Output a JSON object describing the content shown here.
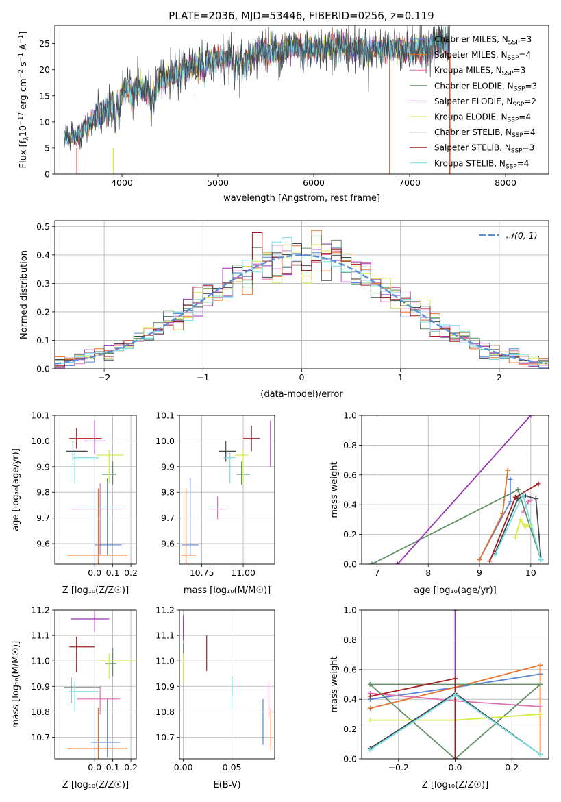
{
  "page": {
    "title": "PLATE=2036, MJD=53446, FIBERID=0256, z=0.119"
  },
  "colors": {
    "Chabrier MILES": "#5b84d6",
    "Salpeter MILES": "#e8722c",
    "Kroupa MILES": "#e06fb0",
    "Chabrier ELODIE": "#5f8f62",
    "Salpeter ELODIE": "#9b30b5",
    "Kroupa ELODIE": "#d7ea45",
    "Chabrier STELIB": "#404a50",
    "Salpeter STELIB": "#a81c1c",
    "Kroupa STELIB": "#76e0e6",
    "gaussian": "#5b8fd6",
    "grid": "#b0b0b0"
  },
  "chart_data": [
    {
      "id": "spectrum",
      "type": "line",
      "title": "PLATE=2036, MJD=53446, FIBERID=0256, z=0.119",
      "xlabel": "wavelength [Angstrom, rest frame]",
      "ylabel_parts": [
        "Flux [f",
        "λ",
        "10",
        "−17",
        " erg cm",
        "−2",
        " s",
        "−1",
        " A",
        "−1",
        "]"
      ],
      "xlim": [
        3300,
        8450
      ],
      "ylim": [
        0,
        28.5
      ],
      "xticks": [
        4000,
        5000,
        6000,
        7000,
        8000
      ],
      "yticks": [
        0,
        5,
        10,
        15,
        20,
        25
      ],
      "grid": false,
      "legend_position": "top-right",
      "spectrum_knots": {
        "wavelength": [
          3400,
          3500,
          3600,
          3700,
          3800,
          3900,
          4000,
          4100,
          4200,
          4300,
          4400,
          4500,
          4600,
          4700,
          4800,
          4900,
          5000,
          5100,
          5200,
          5300,
          5400,
          5500,
          5600,
          5700,
          5800,
          5900,
          6000,
          6100,
          6200,
          6300,
          6400,
          6500,
          6600,
          6700,
          6800,
          6900,
          7000,
          7100,
          7200,
          7300,
          7400
        ],
        "flux": [
          7,
          6.8,
          8.5,
          10.5,
          11.5,
          13,
          15.5,
          16,
          16.5,
          15.5,
          18,
          18.5,
          19.5,
          20.5,
          21,
          21.5,
          22,
          22.5,
          22,
          21.5,
          23.5,
          23.5,
          23.5,
          24,
          24.5,
          24.5,
          24,
          24,
          24.5,
          24.5,
          24,
          24,
          24,
          24,
          24,
          24.5,
          23.5,
          24,
          24.5,
          25,
          25
        ]
      },
      "series": [
        {
          "name": "Chabrier MILES",
          "nssp": "3"
        },
        {
          "name": "Salpeter MILES",
          "nssp": "4"
        },
        {
          "name": "Kroupa MILES",
          "nssp": "3"
        },
        {
          "name": "Chabrier ELODIE",
          "nssp": "3"
        },
        {
          "name": "Salpeter ELODIE",
          "nssp": "2"
        },
        {
          "name": "Kroupa ELODIE",
          "nssp": "4"
        },
        {
          "name": "Chabrier STELIB",
          "nssp": "4"
        },
        {
          "name": "Salpeter STELIB",
          "nssp": "3"
        },
        {
          "name": "Kroupa STELIB",
          "nssp": "4"
        }
      ]
    },
    {
      "id": "residuals",
      "type": "histogram",
      "xlabel": "(data-model)/error",
      "ylabel": "Normed distribution",
      "xlim": [
        -2.5,
        2.5
      ],
      "ylim": [
        0,
        0.52
      ],
      "xticks": [
        -2,
        -1,
        0,
        1,
        2
      ],
      "yticks": [
        0.0,
        0.1,
        0.2,
        0.3,
        0.4,
        0.5
      ],
      "grid": true,
      "legend_position": "top-right",
      "legend": "𝒩(0, 1)",
      "bin_width": 0.1
    },
    {
      "id": "age_vs_Z",
      "type": "errorbar",
      "xlabel": "Z [log₁₀(Z/Z☉)]",
      "ylabel": "age  [log₁₀(age/yr)]",
      "xlim": [
        -0.22,
        0.23
      ],
      "ylim": [
        9.52,
        10.1
      ],
      "xticks": [
        0.0,
        0.1,
        0.2
      ],
      "xtick_labels": [
        "0.0",
        "0.1",
        "0.2"
      ],
      "yticks": [
        9.6,
        9.7,
        9.8,
        9.9,
        10.0,
        10.1
      ],
      "grid": true,
      "points": [
        {
          "series": "Chabrier MILES",
          "x": 0.07,
          "xerr": [
            0.07,
            0.08
          ],
          "y": 9.595,
          "yerr": [
            0.04,
            0.26
          ]
        },
        {
          "series": "Salpeter MILES",
          "x": 0.02,
          "xerr": [
            0.17,
            0.16
          ],
          "y": 9.555,
          "yerr": [
            0.04,
            0.26
          ]
        },
        {
          "series": "Kroupa MILES",
          "x": 0.03,
          "xerr": [
            0.16,
            0.12
          ],
          "y": 9.735,
          "yerr": [
            0.18,
            0.1
          ]
        },
        {
          "series": "Chabrier ELODIE",
          "x": 0.1,
          "xerr": [
            0.06,
            0.02
          ],
          "y": 9.87,
          "yerr": [
            0.04,
            0.05
          ]
        },
        {
          "series": "Salpeter ELODIE",
          "x": 0.0,
          "xerr": [
            0.06,
            0.06
          ],
          "y": 10.0,
          "yerr": [
            0.05,
            0.08
          ]
        },
        {
          "series": "Kroupa ELODIE",
          "x": 0.08,
          "xerr": [
            0.07,
            0.08
          ],
          "y": 9.945,
          "yerr": [
            0.11,
            0.02
          ]
        },
        {
          "series": "Chabrier STELIB",
          "x": -0.12,
          "xerr": [
            0.04,
            0.08
          ],
          "y": 9.96,
          "yerr": [
            0.04,
            0.04
          ]
        },
        {
          "series": "Salpeter STELIB",
          "x": -0.1,
          "xerr": [
            0.04,
            0.14
          ],
          "y": 10.01,
          "yerr": [
            0.04,
            0.04
          ]
        },
        {
          "series": "Kroupa STELIB",
          "x": -0.11,
          "xerr": [
            0.01,
            0.13
          ],
          "y": 9.935,
          "yerr": [
            0.1,
            0.02
          ]
        }
      ]
    },
    {
      "id": "age_vs_mass",
      "type": "errorbar",
      "xlabel": "mass [log₁₀(M/M☉)]",
      "ylabel": "",
      "xlim": [
        10.615,
        11.19
      ],
      "ylim": [
        9.52,
        10.1
      ],
      "xticks": [
        10.75,
        11.0
      ],
      "xtick_labels": [
        "10.75",
        "11.00"
      ],
      "yticks": [
        9.6,
        9.7,
        9.8,
        9.9,
        10.0,
        10.1
      ],
      "grid": true,
      "points": [
        {
          "series": "Chabrier MILES",
          "x": 10.68,
          "xerr": [
            0.05,
            0.05
          ],
          "y": 9.595,
          "yerr": [
            0.04,
            0.26
          ]
        },
        {
          "series": "Salpeter MILES",
          "x": 10.655,
          "xerr": [
            0.03,
            0.06
          ],
          "y": 9.555,
          "yerr": [
            0.04,
            0.26
          ]
        },
        {
          "series": "Kroupa MILES",
          "x": 10.845,
          "xerr": [
            0.05,
            0.05
          ],
          "y": 9.735,
          "yerr": [
            0.04,
            0.05
          ]
        },
        {
          "series": "Chabrier ELODIE",
          "x": 10.99,
          "xerr": [
            0.03,
            0.05
          ],
          "y": 9.87,
          "yerr": [
            0.04,
            0.05
          ]
        },
        {
          "series": "Salpeter ELODIE",
          "x": 11.165,
          "xerr": [
            0.0,
            0.0
          ],
          "y": 10.0,
          "yerr": [
            0.1,
            0.08
          ]
        },
        {
          "series": "Kroupa ELODIE",
          "x": 11.0,
          "xerr": [
            0.05,
            0.03
          ],
          "y": 9.945,
          "yerr": [
            0.11,
            0.02
          ]
        },
        {
          "series": "Chabrier STELIB",
          "x": 10.895,
          "xerr": [
            0.04,
            0.06
          ],
          "y": 9.96,
          "yerr": [
            0.04,
            0.04
          ]
        },
        {
          "series": "Salpeter STELIB",
          "x": 11.05,
          "xerr": [
            0.05,
            0.05
          ],
          "y": 10.01,
          "yerr": [
            0.05,
            0.05
          ]
        },
        {
          "series": "Kroupa STELIB",
          "x": 10.92,
          "xerr": [
            0.04,
            0.03
          ],
          "y": 9.935,
          "yerr": [
            0.1,
            0.02
          ]
        }
      ]
    },
    {
      "id": "weight_vs_age",
      "type": "line",
      "xlabel": "age  [log₁₀(age/yr)]",
      "ylabel": "mass weight",
      "xlim": [
        6.7,
        10.35
      ],
      "ylim": [
        0,
        1.0
      ],
      "xticks": [
        7,
        8,
        9,
        10
      ],
      "yticks": [
        0.0,
        0.2,
        0.4,
        0.6,
        0.8,
        1.0
      ],
      "grid": true,
      "series": [
        {
          "name": "Chabrier MILES",
          "x": [
            9.0,
            9.6,
            9.6
          ],
          "y": [
            0.03,
            0.42,
            0.57
          ]
        },
        {
          "name": "Salpeter MILES",
          "x": [
            9.0,
            9.45,
            9.55
          ],
          "y": [
            0.03,
            0.34,
            0.63
          ]
        },
        {
          "name": "Kroupa MILES",
          "x": [
            9.85,
            9.95,
            10.0
          ],
          "y": [
            0.35,
            0.42,
            0.43
          ]
        },
        {
          "name": "Chabrier ELODIE",
          "x": [
            6.9,
            9.75,
            10.2
          ],
          "y": [
            0.0,
            0.5,
            0.03
          ]
        },
        {
          "name": "Salpeter ELODIE",
          "x": [
            7.4,
            10.0
          ],
          "y": [
            0.0,
            1.0
          ]
        },
        {
          "name": "Kroupa ELODIE",
          "x": [
            9.7,
            9.8,
            9.9,
            10.0,
            9.85
          ],
          "y": [
            0.18,
            0.3,
            0.25,
            0.26,
            0.27
          ]
        },
        {
          "name": "Chabrier STELIB",
          "x": [
            9.3,
            9.75,
            9.9,
            10.1,
            10.2
          ],
          "y": [
            0.07,
            0.44,
            0.46,
            0.44,
            0.03
          ]
        },
        {
          "name": "Salpeter STELIB",
          "x": [
            9.2,
            9.7,
            10.15
          ],
          "y": [
            0.02,
            0.45,
            0.54
          ]
        },
        {
          "name": "Kroupa STELIB",
          "x": [
            9.3,
            9.85,
            9.9,
            10.2
          ],
          "y": [
            0.06,
            0.47,
            0.4,
            0.03
          ]
        }
      ]
    },
    {
      "id": "mass_vs_Z",
      "type": "errorbar",
      "xlabel": "Z [log₁₀(Z/Z☉)]",
      "ylabel": "mass [log₁₀(M/M☉)]",
      "xlim": [
        -0.22,
        0.23
      ],
      "ylim": [
        10.615,
        11.2
      ],
      "xticks": [
        0.0,
        0.1,
        0.2
      ],
      "xtick_labels": [
        "0.0",
        "0.1",
        "0.2"
      ],
      "yticks": [
        10.7,
        10.8,
        10.9,
        11.0,
        11.1,
        11.2
      ],
      "grid": true,
      "points": [
        {
          "series": "Chabrier MILES",
          "x": 0.07,
          "xerr": [
            0.09,
            0.07
          ],
          "y": 10.68,
          "yerr": [
            0.06,
            0.17
          ]
        },
        {
          "series": "Salpeter MILES",
          "x": 0.02,
          "xerr": [
            0.17,
            0.16
          ],
          "y": 10.655,
          "yerr": [
            0.06,
            0.16
          ]
        },
        {
          "series": "Kroupa MILES",
          "x": 0.03,
          "xerr": [
            0.13,
            0.11
          ],
          "y": 10.85,
          "yerr": [
            0.06,
            0.05
          ]
        },
        {
          "series": "Chabrier ELODIE",
          "x": 0.1,
          "xerr": [
            0.04,
            0.02
          ],
          "y": 10.99,
          "yerr": [
            0.05,
            0.06
          ]
        },
        {
          "series": "Salpeter ELODIE",
          "x": 0.0,
          "xerr": [
            0.13,
            0.08
          ],
          "y": 11.165,
          "yerr": [
            0.05,
            0.03
          ]
        },
        {
          "series": "Kroupa ELODIE",
          "x": 0.08,
          "xerr": [
            0.06,
            0.15
          ],
          "y": 11.0,
          "yerr": [
            0.07,
            0.03
          ]
        },
        {
          "series": "Chabrier STELIB",
          "x": -0.13,
          "xerr": [
            0.04,
            0.16
          ],
          "y": 10.895,
          "yerr": [
            0.06,
            0.04
          ]
        },
        {
          "series": "Salpeter STELIB",
          "x": -0.1,
          "xerr": [
            0.04,
            0.1
          ],
          "y": 11.055,
          "yerr": [
            0.1,
            0.04
          ]
        },
        {
          "series": "Kroupa STELIB",
          "x": -0.11,
          "xerr": [
            0.03,
            0.13
          ],
          "y": 10.88,
          "yerr": [
            0.08,
            0.04
          ]
        }
      ]
    },
    {
      "id": "mass_vs_ebv",
      "type": "errorbar",
      "xlabel": "E(B-V)",
      "ylabel": "",
      "xlim": [
        -0.004,
        0.094
      ],
      "ylim": [
        10.615,
        11.2
      ],
      "xticks": [
        0.0,
        0.05
      ],
      "xtick_labels": [
        "0.00",
        "0.05"
      ],
      "yticks": [
        10.7,
        10.8,
        10.9,
        11.0,
        11.1,
        11.2
      ],
      "grid": true,
      "points": [
        {
          "series": "Chabrier MILES",
          "x": 0.082,
          "xerr": [
            0,
            0
          ],
          "y": 10.76,
          "yerr": [
            0.09,
            0.09
          ]
        },
        {
          "series": "Salpeter MILES",
          "x": 0.09,
          "xerr": [
            0,
            0
          ],
          "y": 10.73,
          "yerr": [
            0.08,
            0.08
          ]
        },
        {
          "series": "Kroupa MILES",
          "x": 0.088,
          "xerr": [
            0,
            0
          ],
          "y": 10.85,
          "yerr": [
            0.07,
            0.07
          ]
        },
        {
          "series": "Chabrier ELODIE",
          "x": 0.0,
          "xerr": [
            0,
            0
          ],
          "y": 11.03,
          "yerr": [
            0.04,
            0.04
          ]
        },
        {
          "series": "Salpeter ELODIE",
          "x": 0.0,
          "xerr": [
            0,
            0
          ],
          "y": 11.13,
          "yerr": [
            0.05,
            0.05
          ]
        },
        {
          "series": "Kroupa ELODIE",
          "x": 0.0,
          "xerr": [
            0,
            0
          ],
          "y": 10.97,
          "yerr": [
            0.06,
            0.06
          ]
        },
        {
          "series": "Chabrier STELIB",
          "x": 0.05,
          "xerr": [
            0,
            0
          ],
          "y": 10.9,
          "yerr": [
            0.04,
            0.04
          ]
        },
        {
          "series": "Salpeter STELIB",
          "x": 0.024,
          "xerr": [
            0,
            0
          ],
          "y": 11.03,
          "yerr": [
            0.07,
            0.07
          ]
        },
        {
          "series": "Kroupa STELIB",
          "x": 0.05,
          "xerr": [
            0,
            0
          ],
          "y": 10.87,
          "yerr": [
            0.06,
            0.06
          ]
        }
      ]
    },
    {
      "id": "weight_vs_Z",
      "type": "line",
      "xlabel": "Z [log₁₀(Z/Z☉)]",
      "ylabel": "mass weight",
      "xlim": [
        -0.33,
        0.33
      ],
      "ylim": [
        0,
        1.0
      ],
      "xticks": [
        -0.2,
        0.0,
        0.2
      ],
      "xtick_labels": [
        "−0.2",
        "0.0",
        "0.2"
      ],
      "yticks": [
        0.0,
        0.2,
        0.4,
        0.6,
        0.8,
        1.0
      ],
      "grid": true,
      "series": [
        {
          "name": "Chabrier MILES",
          "x": [
            -0.3,
            0.0,
            0.3
          ],
          "y": [
            0.4,
            0.48,
            0.57
          ]
        },
        {
          "name": "Salpeter MILES",
          "x": [
            -0.3,
            0.0,
            0.3,
            0.3
          ],
          "y": [
            0.34,
            0.48,
            0.63,
            0.03
          ]
        },
        {
          "name": "Kroupa MILES",
          "x": [
            -0.3,
            0.0,
            0.3
          ],
          "y": [
            0.44,
            0.39,
            0.35
          ]
        },
        {
          "name": "Chabrier ELODIE",
          "x": [
            -0.3,
            0.0,
            0.3,
            -0.3,
            0.0,
            0.3
          ],
          "y": [
            0.5,
            0.0,
            0.5,
            0.5,
            0.0,
            0.5
          ]
        },
        {
          "name": "Salpeter ELODIE",
          "x": [
            0.0,
            0.0
          ],
          "y": [
            0.0,
            1.0
          ]
        },
        {
          "name": "Kroupa ELODIE",
          "x": [
            -0.3,
            0.0,
            0.3
          ],
          "y": [
            0.26,
            0.26,
            0.3
          ]
        },
        {
          "name": "Chabrier STELIB",
          "x": [
            -0.3,
            0.0,
            0.3
          ],
          "y": [
            0.07,
            0.44,
            0.03
          ]
        },
        {
          "name": "Salpeter STELIB",
          "x": [
            -0.3,
            0.0,
            0.0
          ],
          "y": [
            0.42,
            0.54,
            0.0
          ]
        },
        {
          "name": "Kroupa STELIB",
          "x": [
            -0.3,
            0.0,
            0.3
          ],
          "y": [
            0.06,
            0.43,
            0.03
          ]
        }
      ]
    }
  ]
}
